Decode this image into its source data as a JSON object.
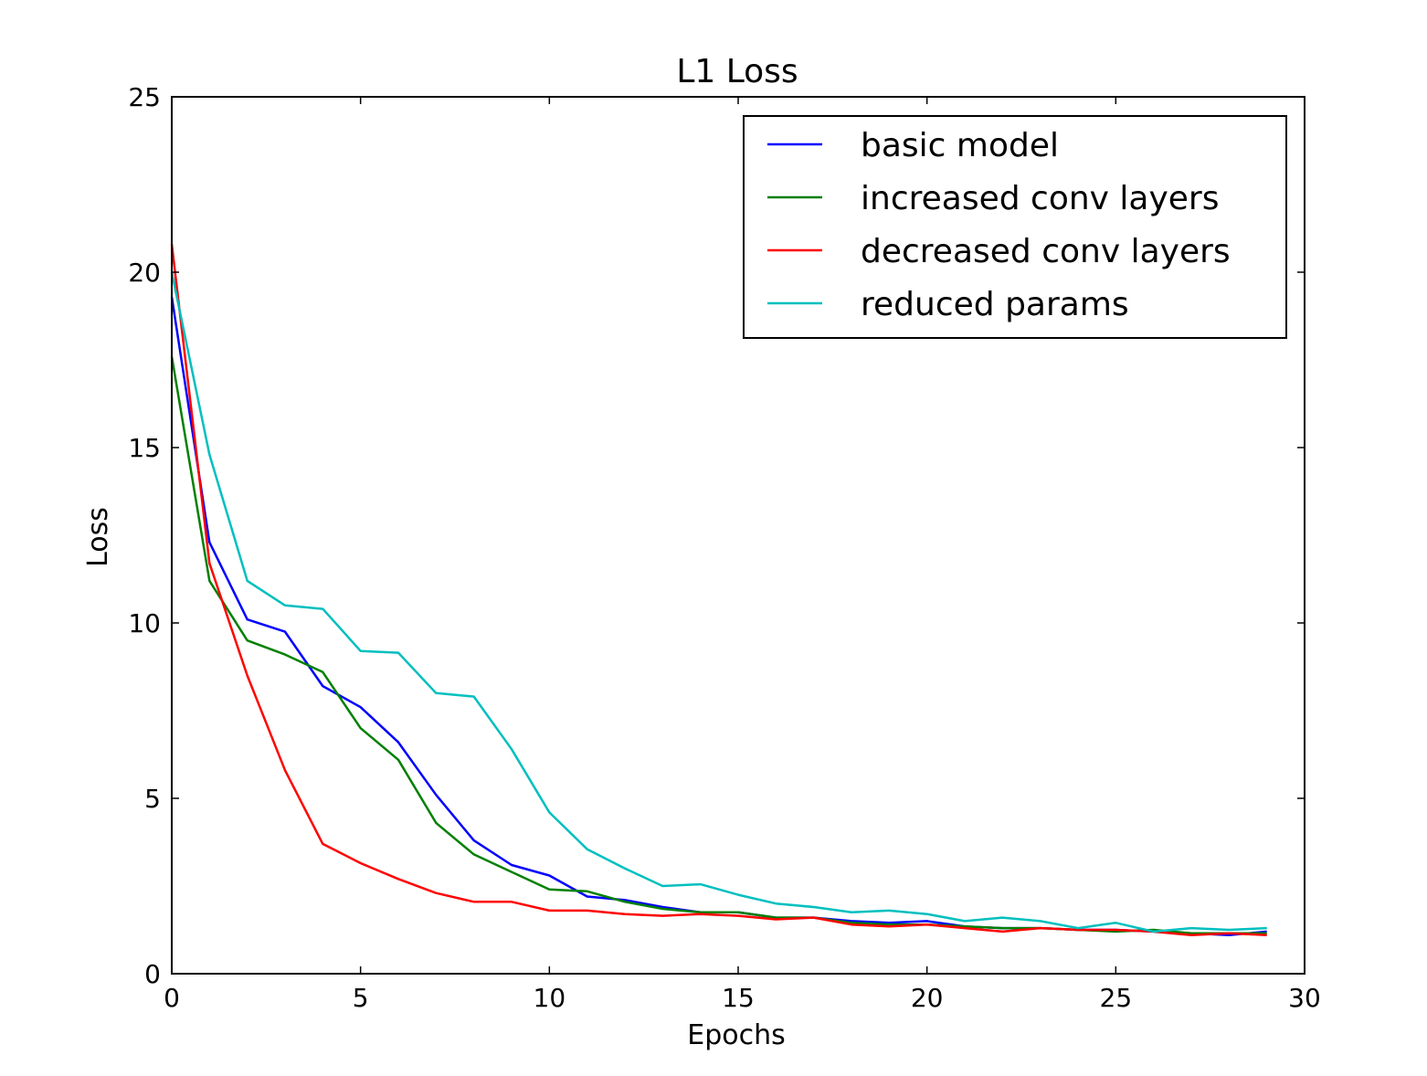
{
  "chart_data": {
    "type": "line",
    "title": "L1 Loss",
    "xlabel": "Epochs",
    "ylabel": "Loss",
    "xlim": [
      0,
      30
    ],
    "ylim": [
      0,
      25
    ],
    "xticks": [
      0,
      5,
      10,
      15,
      20,
      25,
      30
    ],
    "yticks": [
      0,
      5,
      10,
      15,
      20,
      25
    ],
    "grid": false,
    "legend_position": "top-right",
    "x": [
      0,
      1,
      2,
      3,
      4,
      5,
      6,
      7,
      8,
      9,
      10,
      11,
      12,
      13,
      14,
      15,
      16,
      17,
      18,
      19,
      20,
      21,
      22,
      23,
      24,
      25,
      26,
      27,
      28,
      29
    ],
    "series": [
      {
        "name": "basic model",
        "color": "#0000ff",
        "values": [
          19.3,
          12.3,
          10.1,
          9.75,
          8.2,
          7.6,
          6.6,
          5.1,
          3.8,
          3.1,
          2.8,
          2.2,
          2.1,
          1.9,
          1.75,
          1.75,
          1.6,
          1.6,
          1.5,
          1.45,
          1.5,
          1.35,
          1.3,
          1.3,
          1.25,
          1.25,
          1.2,
          1.15,
          1.1,
          1.2
        ]
      },
      {
        "name": "increased conv layers",
        "color": "#008000",
        "values": [
          17.6,
          11.2,
          9.5,
          9.1,
          8.6,
          7.0,
          6.1,
          4.3,
          3.4,
          2.9,
          2.4,
          2.35,
          2.05,
          1.85,
          1.75,
          1.75,
          1.6,
          1.6,
          1.45,
          1.4,
          1.4,
          1.35,
          1.3,
          1.3,
          1.25,
          1.2,
          1.25,
          1.15,
          1.15,
          1.15
        ]
      },
      {
        "name": "decreased conv layers",
        "color": "#ff0000",
        "values": [
          20.8,
          11.7,
          8.5,
          5.8,
          3.7,
          3.15,
          2.7,
          2.3,
          2.05,
          2.05,
          1.8,
          1.8,
          1.7,
          1.65,
          1.7,
          1.65,
          1.55,
          1.6,
          1.4,
          1.35,
          1.4,
          1.3,
          1.2,
          1.3,
          1.25,
          1.25,
          1.2,
          1.1,
          1.15,
          1.1
        ]
      },
      {
        "name": "reduced params",
        "color": "#00bfbf",
        "values": [
          20.0,
          14.8,
          11.2,
          10.5,
          10.4,
          9.2,
          9.15,
          8.0,
          7.9,
          6.4,
          4.6,
          3.55,
          3.0,
          2.5,
          2.55,
          2.25,
          2.0,
          1.9,
          1.75,
          1.8,
          1.7,
          1.5,
          1.6,
          1.5,
          1.3,
          1.45,
          1.2,
          1.3,
          1.25,
          1.3
        ]
      }
    ]
  }
}
